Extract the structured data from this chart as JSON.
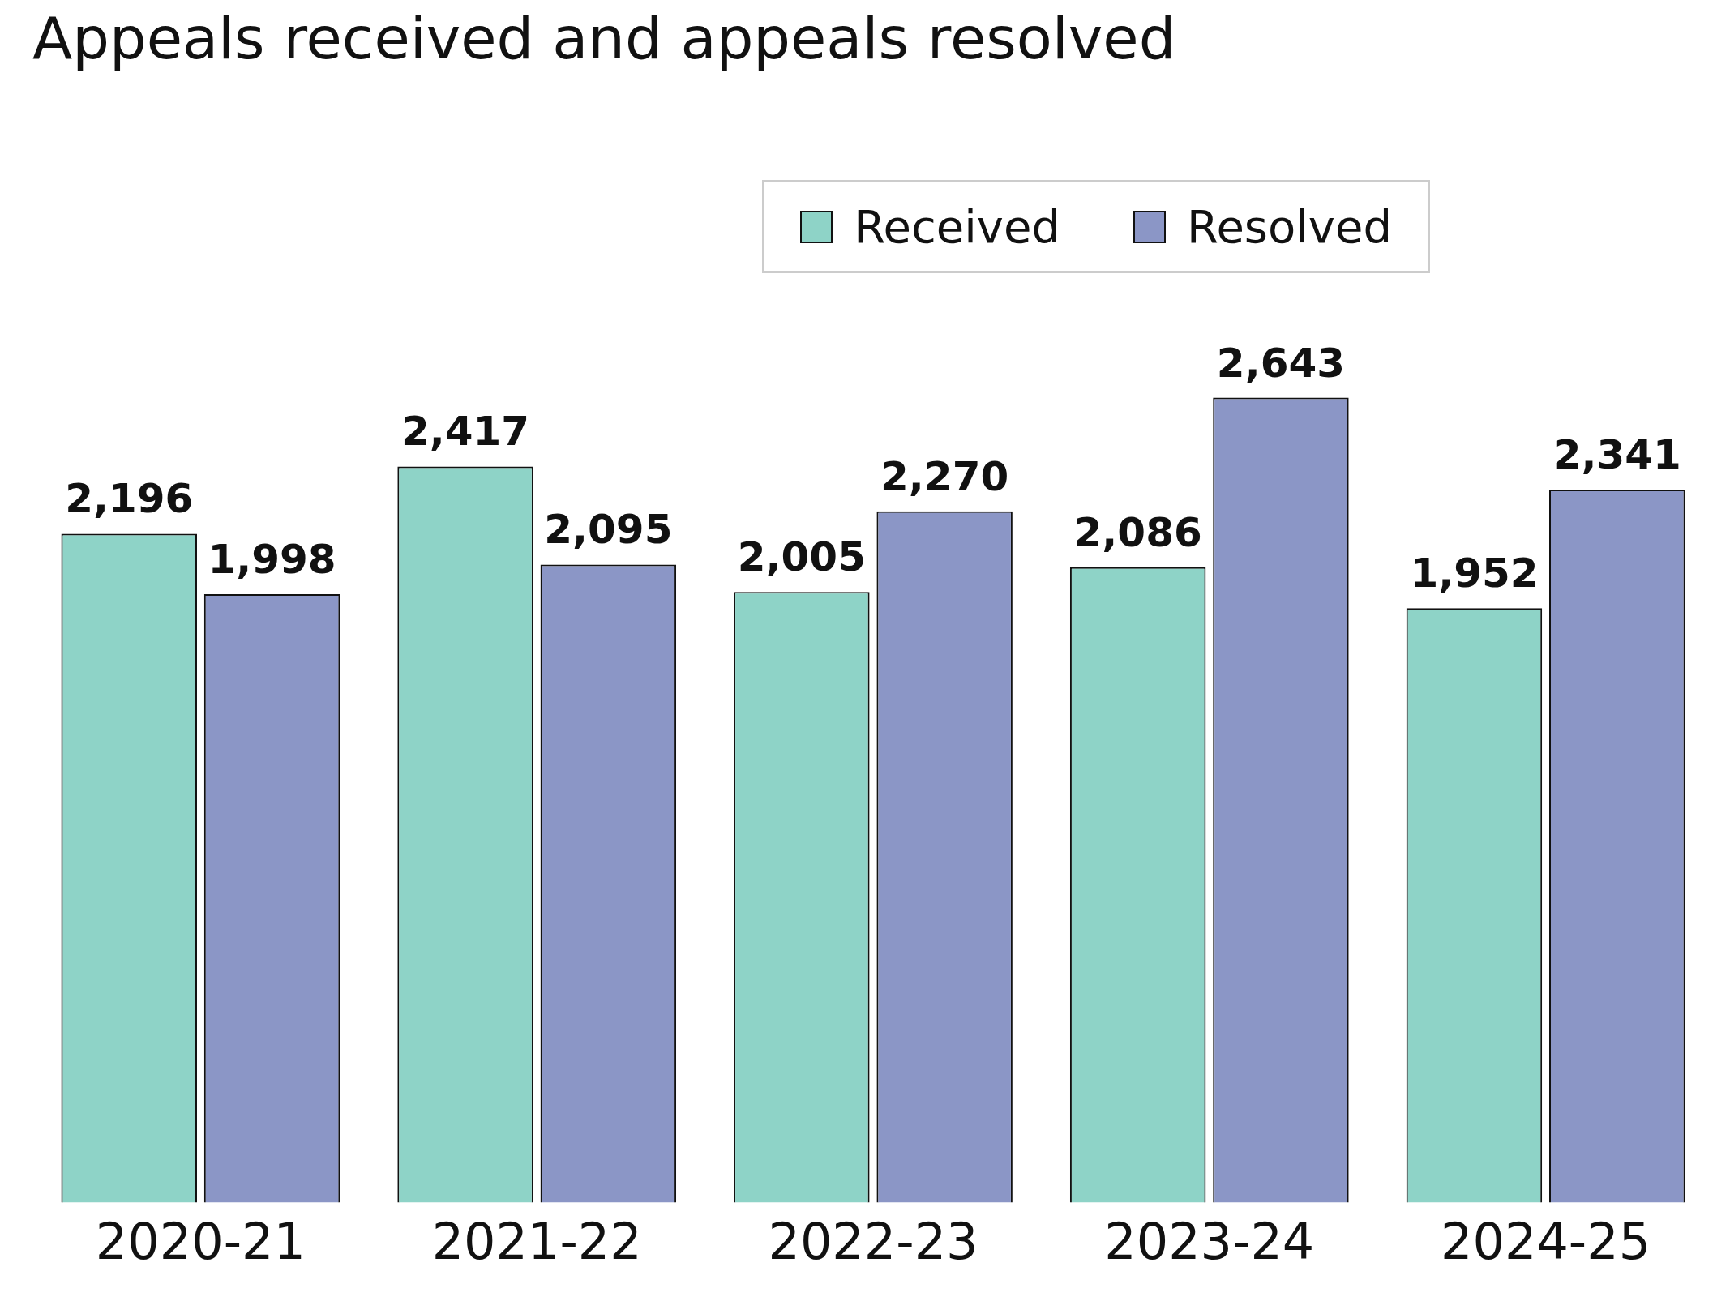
{
  "chart_data": {
    "type": "bar",
    "title": "Appeals received and appeals resolved",
    "categories": [
      "2020-21",
      "2021-22",
      "2022-23",
      "2023-24",
      "2024-25"
    ],
    "series": [
      {
        "name": "Received",
        "color": "#8ed3c7",
        "values": [
          2196,
          2417,
          2005,
          2086,
          1952
        ],
        "value_labels": [
          "2,196",
          "2,417",
          "2,005",
          "2,086",
          "1,952"
        ]
      },
      {
        "name": "Resolved",
        "color": "#8b96c6",
        "values": [
          1998,
          2095,
          2270,
          2643,
          2341
        ],
        "value_labels": [
          "1,998",
          "2,095",
          "2,270",
          "2,643",
          "2,341"
        ]
      }
    ],
    "legend": "top right",
    "grid": false
  }
}
